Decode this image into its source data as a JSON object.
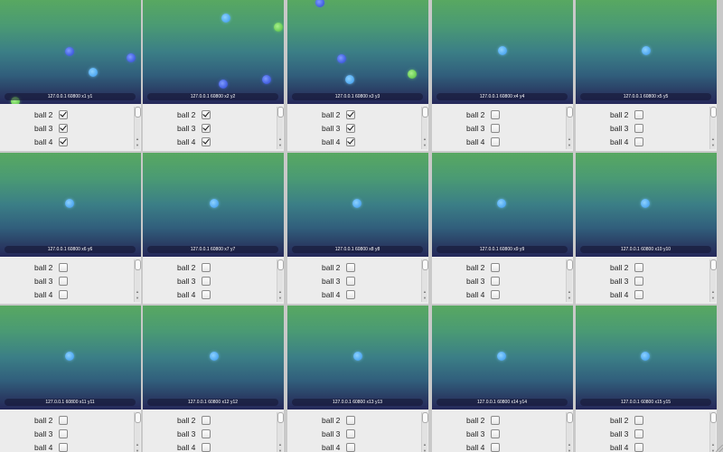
{
  "colors": {
    "canvas_top": "#58a861",
    "canvas_bottom": "#25285a",
    "panel_bg": "#ececec",
    "ball_lightblue": "#5ab0f4",
    "ball_blue": "#4b68e6",
    "ball_green": "#74d35e"
  },
  "icons": {
    "scroll_up": "▲",
    "scroll_down": "▼"
  },
  "windows": [
    {
      "caption": "127.0.0.1 60800 x1 y1",
      "balls": [
        "lightblue",
        "blue",
        "blue",
        "green"
      ],
      "options": [
        {
          "label": "ball 2",
          "checked": true
        },
        {
          "label": "ball 3",
          "checked": true
        },
        {
          "label": "ball 4",
          "checked": true
        }
      ]
    },
    {
      "caption": "127.0.0.1 60800 x2 y2",
      "balls": [
        "lightblue",
        "green",
        "blue",
        "blue"
      ],
      "options": [
        {
          "label": "ball 2",
          "checked": true
        },
        {
          "label": "ball 3",
          "checked": true
        },
        {
          "label": "ball 4",
          "checked": true
        }
      ]
    },
    {
      "caption": "127.0.0.1 60800 x3 y3",
      "balls": [
        "lightblue",
        "blue",
        "blue",
        "green"
      ],
      "options": [
        {
          "label": "ball 2",
          "checked": true
        },
        {
          "label": "ball 3",
          "checked": true
        },
        {
          "label": "ball 4",
          "checked": true
        }
      ]
    },
    {
      "caption": "127.0.0.1 60800 x4 y4",
      "balls": [
        "lightblue"
      ],
      "options": [
        {
          "label": "ball 2",
          "checked": false
        },
        {
          "label": "ball 3",
          "checked": false
        },
        {
          "label": "ball 4",
          "checked": false
        }
      ]
    },
    {
      "caption": "127.0.0.1 60800 x5 y5",
      "balls": [
        "lightblue"
      ],
      "options": [
        {
          "label": "ball 2",
          "checked": false
        },
        {
          "label": "ball 3",
          "checked": false
        },
        {
          "label": "ball 4",
          "checked": false
        }
      ]
    },
    {
      "caption": "127.0.0.1 60800 x6 y6",
      "balls": [
        "lightblue"
      ],
      "options": [
        {
          "label": "ball 2",
          "checked": false
        },
        {
          "label": "ball 3",
          "checked": false
        },
        {
          "label": "ball 4",
          "checked": false
        }
      ]
    },
    {
      "caption": "127.0.0.1 60800 x7 y7",
      "balls": [
        "lightblue"
      ],
      "options": [
        {
          "label": "ball 2",
          "checked": false
        },
        {
          "label": "ball 3",
          "checked": false
        },
        {
          "label": "ball 4",
          "checked": false
        }
      ]
    },
    {
      "caption": "127.0.0.1 60800 x8 y8",
      "balls": [
        "lightblue"
      ],
      "options": [
        {
          "label": "ball 2",
          "checked": false
        },
        {
          "label": "ball 3",
          "checked": false
        },
        {
          "label": "ball 4",
          "checked": false
        }
      ]
    },
    {
      "caption": "127.0.0.1 60800 x9 y9",
      "balls": [
        "lightblue"
      ],
      "options": [
        {
          "label": "ball 2",
          "checked": false
        },
        {
          "label": "ball 3",
          "checked": false
        },
        {
          "label": "ball 4",
          "checked": false
        }
      ]
    },
    {
      "caption": "127.0.0.1 60800 x10 y10",
      "balls": [
        "lightblue"
      ],
      "options": [
        {
          "label": "ball 2",
          "checked": false
        },
        {
          "label": "ball 3",
          "checked": false
        },
        {
          "label": "ball 4",
          "checked": false
        }
      ]
    },
    {
      "caption": "127.0.0.1 60800 x11 y11",
      "balls": [
        "lightblue"
      ],
      "options": [
        {
          "label": "ball 2",
          "checked": false
        },
        {
          "label": "ball 3",
          "checked": false
        },
        {
          "label": "ball 4",
          "checked": false
        }
      ]
    },
    {
      "caption": "127.0.0.1 60800 x12 y12",
      "balls": [
        "lightblue"
      ],
      "options": [
        {
          "label": "ball 2",
          "checked": false
        },
        {
          "label": "ball 3",
          "checked": false
        },
        {
          "label": "ball 4",
          "checked": false
        }
      ]
    },
    {
      "caption": "127.0.0.1 60800 x13 y13",
      "balls": [
        "lightblue"
      ],
      "options": [
        {
          "label": "ball 2",
          "checked": false
        },
        {
          "label": "ball 3",
          "checked": false
        },
        {
          "label": "ball 4",
          "checked": false
        }
      ]
    },
    {
      "caption": "127.0.0.1 60800 x14 y14",
      "balls": [
        "lightblue"
      ],
      "options": [
        {
          "label": "ball 2",
          "checked": false
        },
        {
          "label": "ball 3",
          "checked": false
        },
        {
          "label": "ball 4",
          "checked": false
        }
      ]
    },
    {
      "caption": "127.0.0.1 60800 x15 y15",
      "balls": [
        "lightblue"
      ],
      "options": [
        {
          "label": "ball 2",
          "checked": false
        },
        {
          "label": "ball 3",
          "checked": false
        },
        {
          "label": "ball 4",
          "checked": false
        }
      ]
    }
  ]
}
